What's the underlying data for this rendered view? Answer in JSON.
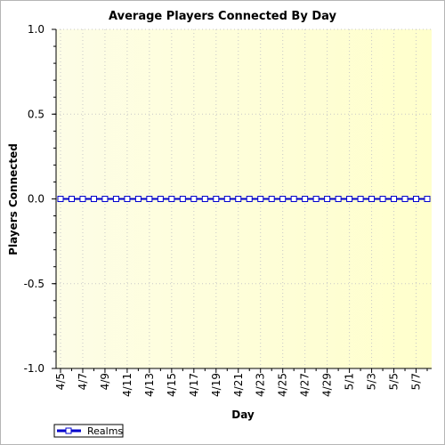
{
  "chart_data": {
    "type": "line",
    "title": "Average Players Connected By Day",
    "xlabel": "Day",
    "ylabel": "Players Connected",
    "ylim": [
      -1.0,
      1.0
    ],
    "yticks": [
      "1.0",
      "0.5",
      "0.0",
      "-0.5",
      "-1.0"
    ],
    "categories": [
      "4/5",
      "4/6",
      "4/7",
      "4/8",
      "4/9",
      "4/10",
      "4/11",
      "4/12",
      "4/13",
      "4/14",
      "4/15",
      "4/16",
      "4/17",
      "4/18",
      "4/19",
      "4/20",
      "4/21",
      "4/22",
      "4/23",
      "4/24",
      "4/25",
      "4/26",
      "4/27",
      "4/28",
      "4/29",
      "4/30",
      "5/1",
      "5/2",
      "5/3",
      "5/4",
      "5/5",
      "5/6",
      "5/7",
      "5/8"
    ],
    "x_tick_labels": [
      "4/5",
      "4/7",
      "4/9",
      "4/11",
      "4/13",
      "4/15",
      "4/17",
      "4/19",
      "4/21",
      "4/23",
      "4/25",
      "4/27",
      "4/29",
      "5/1",
      "5/3",
      "5/5",
      "5/7"
    ],
    "series": [
      {
        "name": "Realms",
        "color": "#0000cc",
        "values": [
          0,
          0,
          0,
          0,
          0,
          0,
          0,
          0,
          0,
          0,
          0,
          0,
          0,
          0,
          0,
          0,
          0,
          0,
          0,
          0,
          0,
          0,
          0,
          0,
          0,
          0,
          0,
          0,
          0,
          0,
          0,
          0,
          0,
          0
        ]
      }
    ],
    "grid": true,
    "legend_position": "bottom-left",
    "plot_background": "#fdfde0"
  }
}
